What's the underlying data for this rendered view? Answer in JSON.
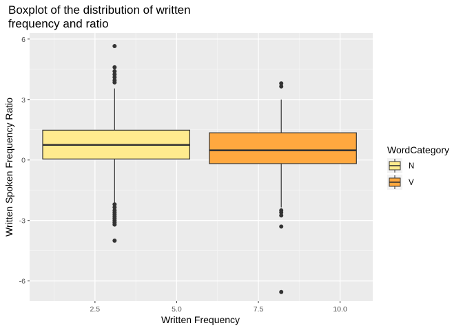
{
  "chart_data": {
    "type": "boxplot",
    "title_lines": [
      "Boxplot of the distribution of written",
      "frequency and ratio"
    ],
    "xlabel": "Written Frequency",
    "ylabel": "Written Spoken Frequency Ratio",
    "xlim": [
      0.5,
      11.0
    ],
    "ylim": [
      -7.0,
      6.3
    ],
    "x_ticks": [
      2.5,
      5.0,
      7.5,
      10.0
    ],
    "x_tick_labels": [
      "2.5",
      "5.0",
      "7.5",
      "10.0"
    ],
    "y_ticks": [
      -6,
      -3,
      0,
      3,
      6
    ],
    "y_tick_labels": [
      "-6",
      "-3",
      "0",
      "3",
      "6"
    ],
    "grid": true,
    "legend": {
      "title": "WordCategory",
      "position": "right",
      "entries": [
        {
          "label": "N",
          "color": "#FFEB8E"
        },
        {
          "label": "V",
          "color": "#FFA83F"
        }
      ]
    },
    "boxes": [
      {
        "category": "N",
        "color": "#FFEB8E",
        "x_center": 3.1,
        "x_min": 0.9,
        "x_max": 5.4,
        "q1": 0.05,
        "median": 0.75,
        "q3": 1.48,
        "whisker_low": -2.15,
        "whisker_high": 3.55,
        "outliers": [
          5.65,
          4.6,
          4.4,
          4.25,
          4.1,
          3.95,
          3.85,
          -2.2,
          -2.35,
          -2.5,
          -2.6,
          -2.7,
          -2.8,
          -2.9,
          -3.0,
          -3.1,
          -3.2,
          -4.0
        ]
      },
      {
        "category": "V",
        "color": "#FFA83F",
        "x_center": 8.2,
        "x_min": 6.0,
        "x_max": 10.5,
        "q1": -0.18,
        "median": 0.48,
        "q3": 1.35,
        "whisker_low": -2.35,
        "whisker_high": 3.0,
        "outliers": [
          3.8,
          3.65,
          -2.5,
          -2.6,
          -2.75,
          -3.3,
          -6.55
        ]
      }
    ]
  }
}
